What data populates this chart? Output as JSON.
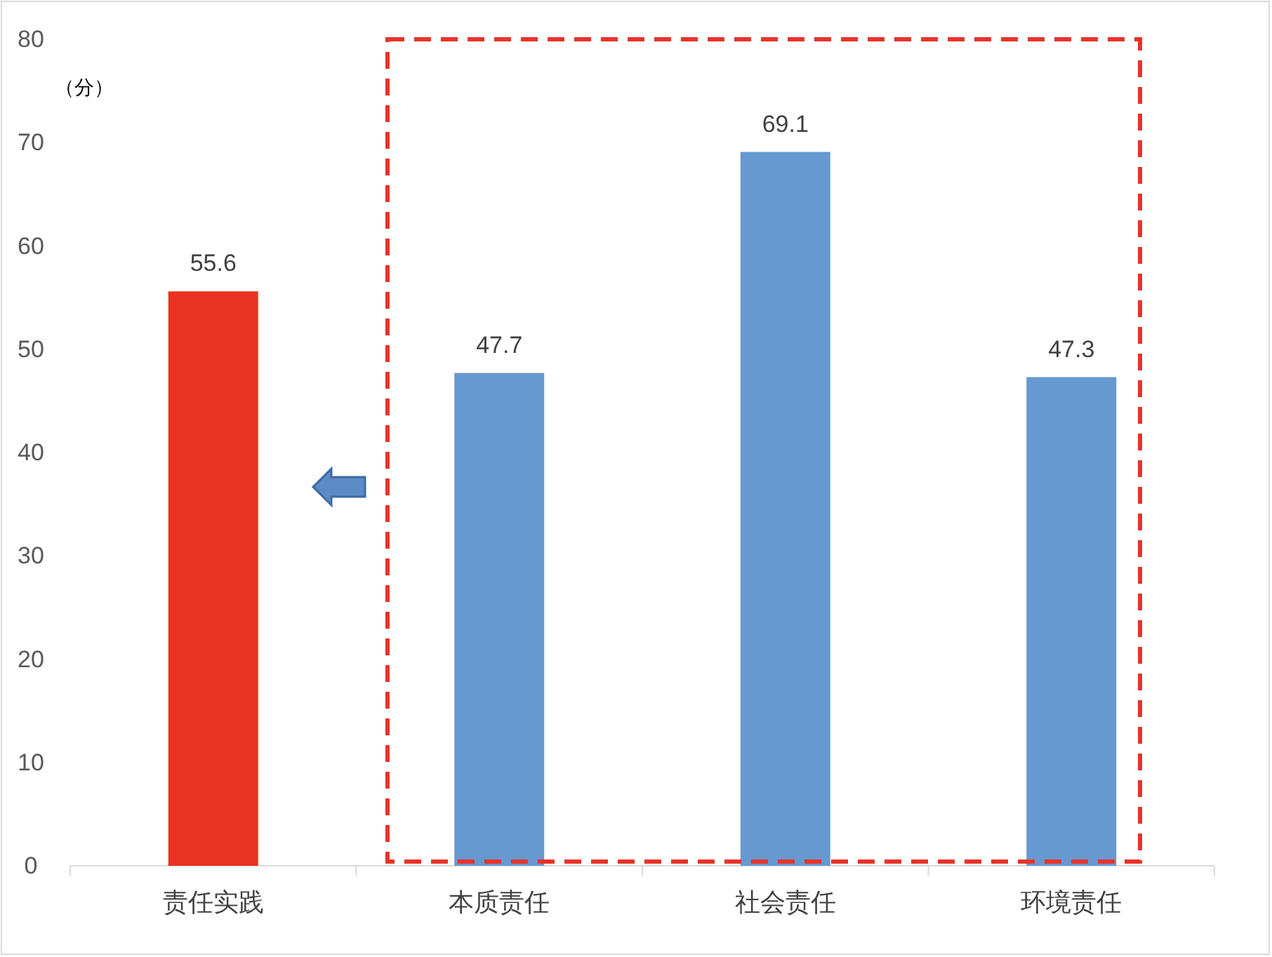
{
  "chart_data": {
    "type": "bar",
    "ylabel": "（分）",
    "categories": [
      "责任实践",
      "本质责任",
      "社会责任",
      "环境责任"
    ],
    "values": [
      55.6,
      47.7,
      69.1,
      47.3
    ],
    "colors": [
      "#e83323",
      "#6699cf",
      "#6699cf",
      "#6699cf"
    ],
    "ylim": [
      0,
      80
    ],
    "yticks": [
      0,
      10,
      20,
      30,
      40,
      50,
      60,
      70,
      80
    ],
    "data_labels": true
  }
}
